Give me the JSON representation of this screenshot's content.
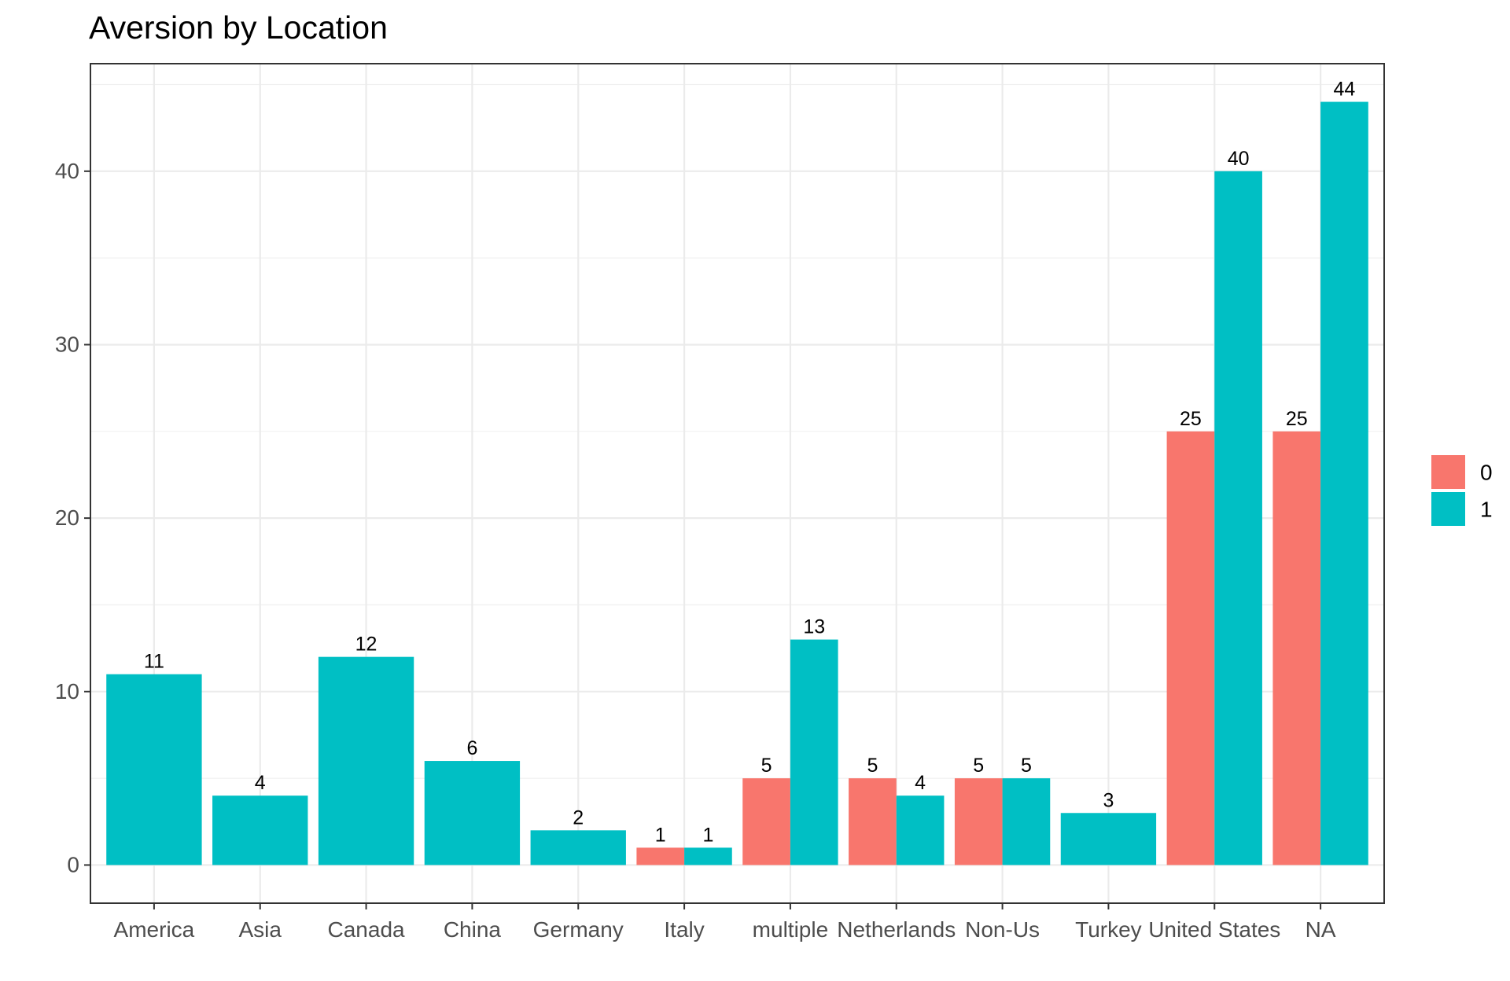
{
  "chart_data": {
    "type": "bar",
    "title": "Aversion by Location",
    "xlabel": "",
    "ylabel": "",
    "ylim": [
      -2.2,
      46.2
    ],
    "yticks": [
      0,
      10,
      20,
      30,
      40
    ],
    "grid": true,
    "legend_position": "right",
    "categories": [
      "America",
      "Asia",
      "Canada",
      "China",
      "Germany",
      "Italy",
      "multiple",
      "Netherlands",
      "Non-Us",
      "Turkey",
      "United States",
      "NA"
    ],
    "series": [
      {
        "name": "0",
        "color": "#F8766D",
        "values": [
          null,
          null,
          null,
          null,
          null,
          1,
          5,
          5,
          5,
          null,
          25,
          25
        ]
      },
      {
        "name": "1",
        "color": "#00BFC4",
        "values": [
          11,
          4,
          12,
          6,
          2,
          1,
          13,
          4,
          5,
          3,
          40,
          44
        ]
      }
    ]
  }
}
